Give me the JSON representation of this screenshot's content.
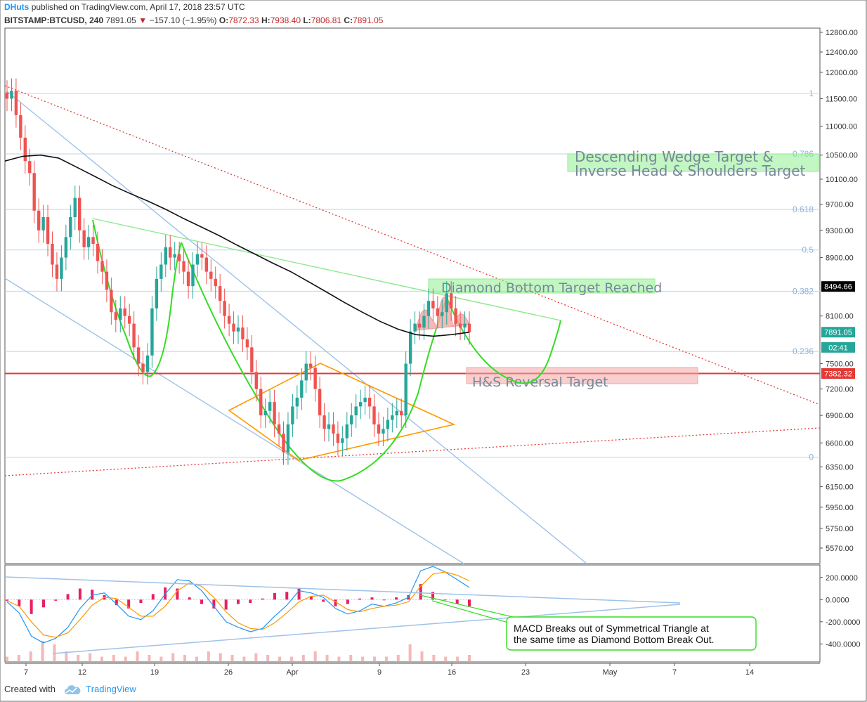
{
  "header": {
    "author": "DHuts",
    "published_text": "published on TradingView.com, April 17, 2018 23:57 UTC",
    "symbol": "BITSTAMP:BTCUSD, 240",
    "last": "7891.05",
    "change_arrow": "▼",
    "change": "−157.10 (−1.95%)",
    "o_label": "O:",
    "o": "7872.33",
    "h_label": "H:",
    "h": "7938.40",
    "l_label": "L:",
    "l": "7806.81",
    "c_label": "C:",
    "c": "7891.05"
  },
  "footer": {
    "created_with": "Created with",
    "brand": "TradingView"
  },
  "chart_data": [
    {
      "type": "line",
      "panel": "price",
      "yaxis": {
        "scale": "log",
        "ticks": [
          "12800.00",
          "12400.00",
          "12000.00",
          "11500.00",
          "11000.00",
          "10500.00",
          "10100.00",
          "9700.00",
          "9300.00",
          "8900.00",
          "8100.00",
          "7500.00",
          "7200.00",
          "6900.00",
          "6600.00",
          "6350.00",
          "6150.00",
          "5950.00",
          "5750.00",
          "5570.00"
        ]
      },
      "xaxis": {
        "ticks": [
          "7",
          "12",
          "19",
          "26",
          "Apr",
          "9",
          "16",
          "23",
          "May",
          "7",
          "14"
        ]
      },
      "price_labels": [
        {
          "text": "8494.66",
          "value": 8494.66,
          "color": "#000000"
        },
        {
          "text": "7891.05",
          "value": 7891.05,
          "color": "#26a69a"
        },
        {
          "text": "02:41",
          "value": 7700,
          "color": "#26a69a"
        },
        {
          "text": "7382.32",
          "value": 7382.32,
          "color": "#e53935"
        }
      ],
      "fib_levels": [
        {
          "label": "1",
          "value": 11600
        },
        {
          "label": "0.786",
          "value": 10520
        },
        {
          "label": "0.618",
          "value": 9620
        },
        {
          "label": "0.5",
          "value": 9010
        },
        {
          "label": "0.382",
          "value": 8430
        },
        {
          "label": "0.236",
          "value": 7650
        },
        {
          "label": "0",
          "value": 6450
        }
      ],
      "horizontal_line": {
        "value": 7382.32,
        "color": "#e53935"
      },
      "annotations": [
        {
          "text_lines": [
            "Descending Wedge Target &",
            "Inverse Head & Shoulders Target"
          ],
          "value": 10400,
          "color": "#90ee90"
        },
        {
          "text_lines": [
            "Diamond Bottom Target Reached"
          ],
          "value": 8500,
          "color": "#90ee90"
        },
        {
          "text_lines": [
            "H&S Reversal Target"
          ],
          "value": 7330,
          "color": "#f4a6a6"
        }
      ],
      "series": [
        {
          "name": "",
          "style": "candles",
          "values": [
            11500,
            11650,
            11200,
            10800,
            10400,
            10200,
            9600,
            9300,
            9500,
            9100,
            8800,
            8600,
            8900,
            9200,
            9500,
            9800,
            9300,
            9050,
            9200,
            9100,
            8850,
            8700,
            8450,
            8150,
            8050,
            8200,
            8100,
            8000,
            7700,
            7500,
            7400,
            7600,
            8200,
            8600,
            8800,
            9050,
            8900,
            8950,
            8850,
            8700,
            8500,
            8800,
            8950,
            8900,
            8700,
            8600,
            8500,
            8300,
            8100,
            8000,
            7900,
            7950,
            7800,
            7700,
            7400,
            7200,
            6900,
            6950,
            7050,
            6800,
            6700,
            6500,
            6800,
            7000,
            7100,
            7300,
            7500,
            7450,
            7200,
            6900,
            6750,
            6800,
            6700,
            6600,
            6650,
            6800,
            6900,
            7000,
            7050,
            7100,
            7000,
            6800,
            6700,
            6750,
            6850,
            6900,
            6950,
            6900,
            7500,
            7900,
            8000,
            7950,
            8100,
            8300,
            8200,
            8100,
            8150,
            8400,
            8200,
            8000,
            7950,
            8000,
            7891
          ]
        },
        {
          "name": "",
          "style": "line",
          "color": "#000000",
          "values": [
            10400,
            10480,
            10500,
            10450,
            10300,
            10150,
            10000,
            9870,
            9750,
            9620,
            9480,
            9350,
            9220,
            9080,
            8950,
            8820,
            8700,
            8560,
            8420,
            8280,
            8150,
            8030,
            7930,
            7860,
            7840,
            7860,
            7890
          ]
        }
      ]
    },
    {
      "type": "line",
      "panel": "macd",
      "yaxis": {
        "ticks": [
          "200.0000",
          "0.0000",
          "-200.0000",
          "-400.0000"
        ],
        "ylim": [
          -550,
          300
        ]
      },
      "annotation": [
        "MACD Breaks out of Symmetrical Triangle at",
        "the same time as Diamond Bottom Break Out."
      ],
      "series": [
        {
          "name": "",
          "style": "line",
          "color": "#2196f3",
          "values": [
            -20,
            -120,
            -330,
            -390,
            -350,
            -250,
            -80,
            40,
            60,
            -40,
            -150,
            -180,
            -100,
            50,
            180,
            170,
            80,
            -60,
            -200,
            -250,
            -290,
            -260,
            -150,
            -50,
            80,
            60,
            20,
            -80,
            -130,
            -100,
            -40,
            -60,
            -30,
            20,
            260,
            300,
            250,
            180,
            110
          ]
        },
        {
          "name": "",
          "style": "line",
          "color": "#ff9800",
          "values": [
            -10,
            -60,
            -200,
            -320,
            -340,
            -300,
            -180,
            -50,
            20,
            10,
            -70,
            -150,
            -150,
            -60,
            80,
            150,
            120,
            20,
            -110,
            -210,
            -260,
            -270,
            -210,
            -120,
            -20,
            30,
            40,
            -20,
            -90,
            -110,
            -80,
            -60,
            -50,
            -20,
            120,
            230,
            250,
            220,
            170
          ]
        },
        {
          "name": "",
          "style": "histogram",
          "color": "#e91e63",
          "values": [
            -10,
            -60,
            -130,
            -70,
            -10,
            50,
            100,
            90,
            40,
            -50,
            -80,
            -30,
            50,
            110,
            100,
            20,
            -40,
            -80,
            -90,
            -40,
            -30,
            10,
            60,
            70,
            100,
            30,
            -20,
            -60,
            -40,
            10,
            20,
            0,
            20,
            40,
            140,
            70,
            0,
            -40,
            -60
          ]
        },
        {
          "name": "",
          "style": "volume",
          "color": "#ef9a9a",
          "values": [
            3,
            4,
            6,
            12,
            10,
            6,
            4,
            5,
            3,
            4,
            3,
            6,
            4,
            3,
            5,
            4,
            3,
            6,
            5,
            4,
            3,
            5,
            4,
            3,
            3,
            4,
            6,
            4,
            3,
            4,
            3,
            3,
            3,
            4,
            10,
            6,
            4,
            3,
            3,
            4
          ]
        }
      ]
    }
  ]
}
